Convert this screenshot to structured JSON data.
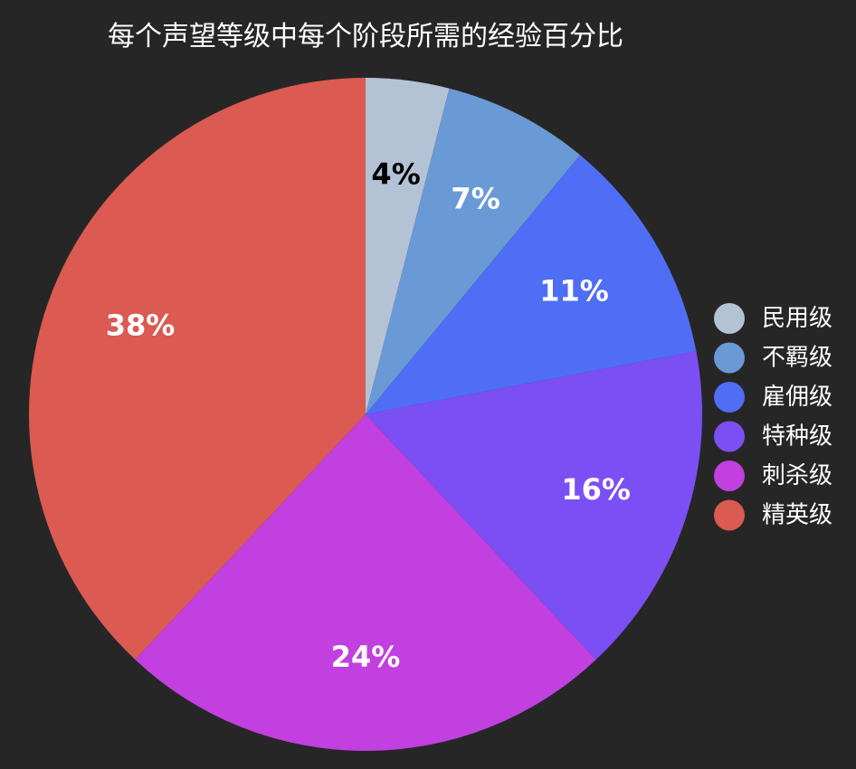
{
  "chart_data": {
    "type": "pie",
    "title": "每个声望等级中每个阶段所需的经验百分比",
    "legend_position": "right",
    "slices": [
      {
        "label": "民用级",
        "value": 4,
        "value_label": "4%",
        "color": "#b4c2d6",
        "label_color": "#000000"
      },
      {
        "label": "不羁级",
        "value": 7,
        "value_label": "7%",
        "color": "#6a9ad6",
        "label_color": "#ffffff"
      },
      {
        "label": "雇佣级",
        "value": 11,
        "value_label": "11%",
        "color": "#4f6ef5",
        "label_color": "#ffffff"
      },
      {
        "label": "特种级",
        "value": 16,
        "value_label": "16%",
        "color": "#7c4ff5",
        "label_color": "#ffffff"
      },
      {
        "label": "刺杀级",
        "value": 24,
        "value_label": "24%",
        "color": "#c23fe0",
        "label_color": "#ffffff"
      },
      {
        "label": "精英级",
        "value": 38,
        "value_label": "38%",
        "color": "#db5a51",
        "label_color": "#ffffff"
      }
    ]
  }
}
